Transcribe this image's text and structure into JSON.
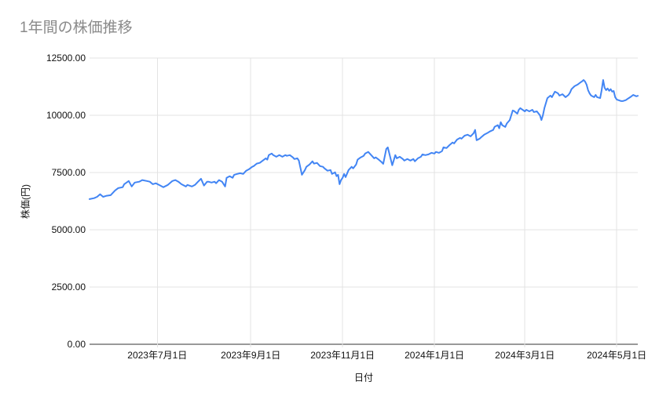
{
  "chart_data": {
    "type": "line",
    "title": "1年間の株価推移",
    "xlabel": "日付",
    "ylabel": "株価(円)",
    "ylim": [
      0,
      12500
    ],
    "grid": true,
    "legend": "none",
    "background_color": "#ffffff",
    "title_color": "#8a8a8a",
    "gridline_color": "#e3e3e3",
    "axis_line_color": "#333333",
    "tick_label_color": "#111111",
    "y_ticks": [
      0,
      2500,
      5000,
      7500,
      10000,
      12500
    ],
    "y_tick_labels": [
      "0.00",
      "2500.00",
      "5000.00",
      "7500.00",
      "10000.00",
      "12500.00"
    ],
    "x_start_date": "2023-05-17",
    "x_total_days": 364,
    "x_ticks": [
      {
        "label": "2023年7月1日",
        "day": 45
      },
      {
        "label": "2023年9月1日",
        "day": 107
      },
      {
        "label": "2023年11月1日",
        "day": 168
      },
      {
        "label": "2024年1月1日",
        "day": 229
      },
      {
        "label": "2024年3月1日",
        "day": 289
      },
      {
        "label": "2024年5月1日",
        "day": 350
      }
    ],
    "series": [
      {
        "color": "#4285f4",
        "points": [
          [
            0,
            6340
          ],
          [
            3,
            6380
          ],
          [
            5,
            6440
          ],
          [
            7,
            6550
          ],
          [
            9,
            6440
          ],
          [
            11,
            6480
          ],
          [
            14,
            6510
          ],
          [
            17,
            6720
          ],
          [
            19,
            6820
          ],
          [
            22,
            6860
          ],
          [
            23,
            6990
          ],
          [
            26,
            7130
          ],
          [
            28,
            6890
          ],
          [
            30,
            7060
          ],
          [
            33,
            7100
          ],
          [
            35,
            7170
          ],
          [
            38,
            7130
          ],
          [
            40,
            7100
          ],
          [
            42,
            6990
          ],
          [
            44,
            7030
          ],
          [
            47,
            6930
          ],
          [
            49,
            6860
          ],
          [
            52,
            6960
          ],
          [
            55,
            7130
          ],
          [
            57,
            7170
          ],
          [
            59,
            7100
          ],
          [
            61,
            6990
          ],
          [
            64,
            6890
          ],
          [
            65,
            6960
          ],
          [
            68,
            6890
          ],
          [
            70,
            6960
          ],
          [
            72,
            7100
          ],
          [
            74,
            7230
          ],
          [
            76,
            6930
          ],
          [
            78,
            7100
          ],
          [
            79,
            7100
          ],
          [
            81,
            7060
          ],
          [
            83,
            7100
          ],
          [
            84,
            7030
          ],
          [
            86,
            7170
          ],
          [
            88,
            7100
          ],
          [
            90,
            6890
          ],
          [
            91,
            7270
          ],
          [
            93,
            7340
          ],
          [
            95,
            7270
          ],
          [
            96,
            7400
          ],
          [
            98,
            7440
          ],
          [
            100,
            7470
          ],
          [
            102,
            7440
          ],
          [
            104,
            7580
          ],
          [
            106,
            7650
          ],
          [
            108,
            7750
          ],
          [
            109,
            7780
          ],
          [
            111,
            7890
          ],
          [
            113,
            7920
          ],
          [
            115,
            8020
          ],
          [
            117,
            8120
          ],
          [
            118,
            8060
          ],
          [
            119,
            8260
          ],
          [
            121,
            8330
          ],
          [
            122,
            8260
          ],
          [
            124,
            8190
          ],
          [
            126,
            8260
          ],
          [
            128,
            8190
          ],
          [
            130,
            8260
          ],
          [
            131,
            8230
          ],
          [
            133,
            8260
          ],
          [
            135,
            8160
          ],
          [
            136,
            8090
          ],
          [
            138,
            8120
          ],
          [
            139,
            8020
          ],
          [
            141,
            7400
          ],
          [
            143,
            7610
          ],
          [
            144,
            7750
          ],
          [
            146,
            7850
          ],
          [
            148,
            7990
          ],
          [
            149,
            7890
          ],
          [
            151,
            7920
          ],
          [
            153,
            7780
          ],
          [
            155,
            7750
          ],
          [
            156,
            7680
          ],
          [
            158,
            7580
          ],
          [
            160,
            7610
          ],
          [
            161,
            7440
          ],
          [
            163,
            7510
          ],
          [
            164,
            7340
          ],
          [
            165,
            7400
          ],
          [
            166,
            6990
          ],
          [
            167,
            7170
          ],
          [
            168,
            7270
          ],
          [
            169,
            7440
          ],
          [
            170,
            7300
          ],
          [
            172,
            7610
          ],
          [
            174,
            7750
          ],
          [
            175,
            7680
          ],
          [
            177,
            7850
          ],
          [
            178,
            8060
          ],
          [
            180,
            8160
          ],
          [
            182,
            8230
          ],
          [
            183,
            8330
          ],
          [
            185,
            8400
          ],
          [
            187,
            8260
          ],
          [
            189,
            8120
          ],
          [
            190,
            8160
          ],
          [
            192,
            8060
          ],
          [
            194,
            7950
          ],
          [
            195,
            7880
          ],
          [
            197,
            8530
          ],
          [
            198,
            8600
          ],
          [
            201,
            7820
          ],
          [
            203,
            8260
          ],
          [
            204,
            8120
          ],
          [
            206,
            8190
          ],
          [
            208,
            8090
          ],
          [
            209,
            8020
          ],
          [
            211,
            8090
          ],
          [
            213,
            8020
          ],
          [
            215,
            8090
          ],
          [
            216,
            7990
          ],
          [
            218,
            8120
          ],
          [
            220,
            8190
          ],
          [
            221,
            8290
          ],
          [
            223,
            8260
          ],
          [
            225,
            8290
          ],
          [
            227,
            8360
          ],
          [
            229,
            8330
          ],
          [
            230,
            8400
          ],
          [
            232,
            8360
          ],
          [
            234,
            8430
          ],
          [
            235,
            8600
          ],
          [
            237,
            8570
          ],
          [
            239,
            8700
          ],
          [
            241,
            8810
          ],
          [
            242,
            8770
          ],
          [
            244,
            8940
          ],
          [
            246,
            9010
          ],
          [
            247,
            8980
          ],
          [
            249,
            9110
          ],
          [
            251,
            9150
          ],
          [
            253,
            9080
          ],
          [
            255,
            9220
          ],
          [
            256,
            9360
          ],
          [
            257,
            8910
          ],
          [
            259,
            8980
          ],
          [
            260,
            9040
          ],
          [
            262,
            9150
          ],
          [
            264,
            9220
          ],
          [
            266,
            9300
          ],
          [
            268,
            9360
          ],
          [
            269,
            9500
          ],
          [
            271,
            9570
          ],
          [
            272,
            9430
          ],
          [
            273,
            9700
          ],
          [
            274,
            9570
          ],
          [
            276,
            9490
          ],
          [
            277,
            9640
          ],
          [
            279,
            9790
          ],
          [
            281,
            10210
          ],
          [
            282,
            10180
          ],
          [
            284,
            10070
          ],
          [
            285,
            10240
          ],
          [
            286,
            10310
          ],
          [
            289,
            10170
          ],
          [
            290,
            10240
          ],
          [
            292,
            10170
          ],
          [
            294,
            10240
          ],
          [
            295,
            10140
          ],
          [
            297,
            10170
          ],
          [
            299,
            10000
          ],
          [
            300,
            9790
          ],
          [
            301,
            10000
          ],
          [
            302,
            10310
          ],
          [
            304,
            10750
          ],
          [
            306,
            10860
          ],
          [
            307,
            10790
          ],
          [
            309,
            11030
          ],
          [
            311,
            10960
          ],
          [
            312,
            10860
          ],
          [
            314,
            10920
          ],
          [
            316,
            10790
          ],
          [
            318,
            10890
          ],
          [
            319,
            10990
          ],
          [
            320,
            11140
          ],
          [
            322,
            11270
          ],
          [
            324,
            11340
          ],
          [
            326,
            11440
          ],
          [
            327,
            11480
          ],
          [
            328,
            11540
          ],
          [
            329,
            11470
          ],
          [
            330,
            11340
          ],
          [
            331,
            11100
          ],
          [
            332,
            10960
          ],
          [
            333,
            10860
          ],
          [
            335,
            10790
          ],
          [
            336,
            10890
          ],
          [
            337,
            10790
          ],
          [
            339,
            10750
          ],
          [
            340,
            11100
          ],
          [
            341,
            11540
          ],
          [
            342,
            11200
          ],
          [
            343,
            11100
          ],
          [
            344,
            11170
          ],
          [
            345,
            11070
          ],
          [
            346,
            11140
          ],
          [
            347,
            11030
          ],
          [
            348,
            11060
          ],
          [
            349,
            10790
          ],
          [
            350,
            10690
          ],
          [
            353,
            10620
          ],
          [
            354,
            10620
          ],
          [
            356,
            10660
          ],
          [
            358,
            10750
          ],
          [
            359,
            10790
          ],
          [
            361,
            10890
          ],
          [
            363,
            10830
          ],
          [
            364,
            10850
          ]
        ]
      }
    ]
  }
}
